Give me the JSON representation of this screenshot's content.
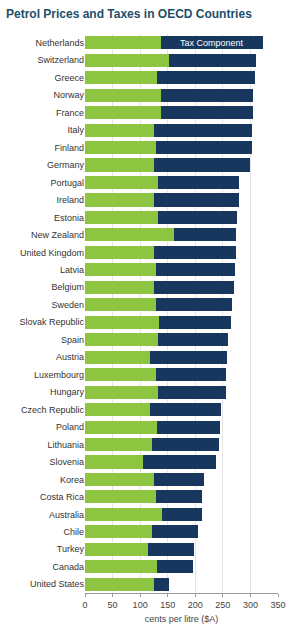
{
  "chart_data": {
    "type": "bar",
    "title": "Petrol Prices and Taxes in OECD Countries",
    "x_label": "cents per litre ($A)",
    "orientation": "horizontal",
    "stacked": true,
    "grid": true,
    "categories": [
      "Netherlands",
      "Switzerland",
      "Greece",
      "Norway",
      "France",
      "Italy",
      "Finland",
      "Germany",
      "Portugal",
      "Ireland",
      "Estonia",
      "New Zealand",
      "United Kingdom",
      "Latvia",
      "Belgium",
      "Sweden",
      "Slovak Republic",
      "Spain",
      "Austria",
      "Luxembourg",
      "Hungary",
      "Czech Republic",
      "Poland",
      "Lithuania",
      "Slovenia",
      "Korea",
      "Costa Rica",
      "Australia",
      "Chile",
      "Turkey",
      "Canada",
      "United States"
    ],
    "series": [
      {
        "color": "#8dc540",
        "values": [
          137,
          152,
          130,
          137,
          137,
          126,
          128,
          125,
          132,
          125,
          133,
          162,
          125,
          128,
          125,
          128,
          135,
          133,
          117,
          128,
          133,
          118,
          130,
          122,
          105,
          125,
          128,
          140,
          122,
          115,
          130,
          125
        ]
      },
      {
        "name": "Tax Component",
        "color": "#17375e",
        "values": [
          186,
          158,
          178,
          168,
          168,
          177,
          175,
          175,
          148,
          155,
          142,
          111,
          148,
          144,
          145,
          139,
          130,
          127,
          141,
          128,
          122,
          129,
          115,
          121,
          132,
          90,
          84,
          72,
          83,
          83,
          65,
          27
        ]
      }
    ],
    "xlim": [
      0,
      350
    ],
    "xticks": [
      0,
      50,
      100,
      150,
      200,
      250,
      300,
      350
    ]
  }
}
